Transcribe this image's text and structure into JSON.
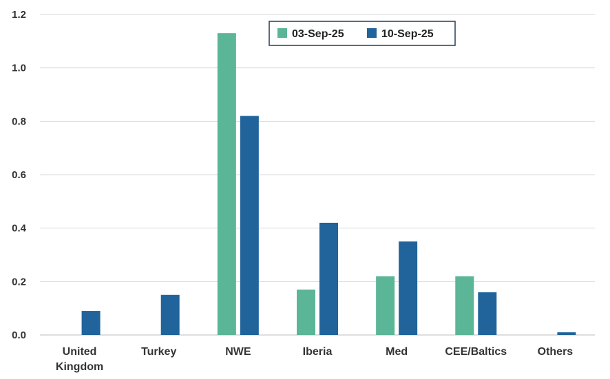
{
  "chart_data": {
    "type": "bar",
    "categories": [
      [
        "United",
        "Kingdom"
      ],
      [
        "Turkey"
      ],
      [
        "NWE"
      ],
      [
        "Iberia"
      ],
      [
        "Med"
      ],
      [
        "CEE/Baltics"
      ],
      [
        "Others"
      ]
    ],
    "series": [
      {
        "name": "03-Sep-25",
        "color": "#5BB597",
        "values": [
          0,
          0,
          1.13,
          0.17,
          0.22,
          0.22,
          0
        ]
      },
      {
        "name": "10-Sep-25",
        "color": "#20649B",
        "values": [
          0.09,
          0.15,
          0.82,
          0.42,
          0.35,
          0.16,
          0.01
        ]
      }
    ],
    "y_ticks": [
      "0.0",
      "0.2",
      "0.4",
      "0.6",
      "0.8",
      "1.0",
      "1.2"
    ],
    "ylim": [
      0,
      1.2
    ],
    "grid": true,
    "legend_position": "top-right"
  }
}
